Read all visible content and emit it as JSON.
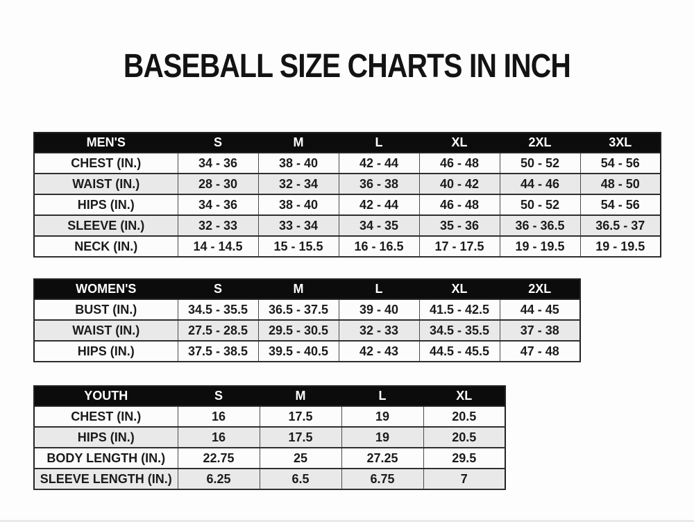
{
  "title": "BASEBALL SIZE CHARTS IN INCH",
  "colors": {
    "page_background": "#fdfdfd",
    "header_background": "#0c0c0c",
    "header_text": "#ffffff",
    "row_background": "#fcfcfc",
    "row_stripe_background": "#e9e9e9",
    "border": "#2e2e2e",
    "text": "#1b1b1b"
  },
  "tables": [
    {
      "name": "MEN'S",
      "header": [
        "MEN'S",
        "S",
        "M",
        "L",
        "XL",
        "2XL",
        "3XL"
      ],
      "rows": [
        [
          "CHEST (IN.)",
          "34 - 36",
          "38 - 40",
          "42 - 44",
          "46 - 48",
          "50 - 52",
          "54 - 56"
        ],
        [
          "WAIST (IN.)",
          "28 - 30",
          "32 - 34",
          "36 - 38",
          "40 - 42",
          "44 - 46",
          "48 - 50"
        ],
        [
          "HIPS (IN.)",
          "34 - 36",
          "38 - 40",
          "42 - 44",
          "46 - 48",
          "50 - 52",
          "54 - 56"
        ],
        [
          "SLEEVE (IN.)",
          "32 - 33",
          "33 - 34",
          "34 - 35",
          "35 - 36",
          "36 - 36.5",
          "36.5 - 37"
        ],
        [
          "NECK (IN.)",
          "14 - 14.5",
          "15 - 15.5",
          "16 - 16.5",
          "17 - 17.5",
          "19 - 19.5",
          "19 - 19.5"
        ]
      ]
    },
    {
      "name": "WOMEN'S",
      "header": [
        "WOMEN'S",
        "S",
        "M",
        "L",
        "XL",
        "2XL"
      ],
      "rows": [
        [
          "BUST (IN.)",
          "34.5 - 35.5",
          "36.5 - 37.5",
          "39 - 40",
          "41.5 - 42.5",
          "44 - 45"
        ],
        [
          "WAIST (IN.)",
          "27.5 - 28.5",
          "29.5 - 30.5",
          "32 - 33",
          "34.5 - 35.5",
          "37 - 38"
        ],
        [
          "HIPS (IN.)",
          "37.5 - 38.5",
          "39.5 - 40.5",
          "42 - 43",
          "44.5 - 45.5",
          "47 - 48"
        ]
      ]
    },
    {
      "name": "YOUTH",
      "header": [
        "YOUTH",
        "S",
        "M",
        "L",
        "XL"
      ],
      "rows": [
        [
          "CHEST (IN.)",
          "16",
          "17.5",
          "19",
          "20.5"
        ],
        [
          "HIPS (IN.)",
          "16",
          "17.5",
          "19",
          "20.5"
        ],
        [
          "BODY LENGTH (IN.)",
          "22.75",
          "25",
          "27.25",
          "29.5"
        ],
        [
          "SLEEVE LENGTH (IN.)",
          "6.25",
          "6.5",
          "6.75",
          "7"
        ]
      ]
    }
  ]
}
